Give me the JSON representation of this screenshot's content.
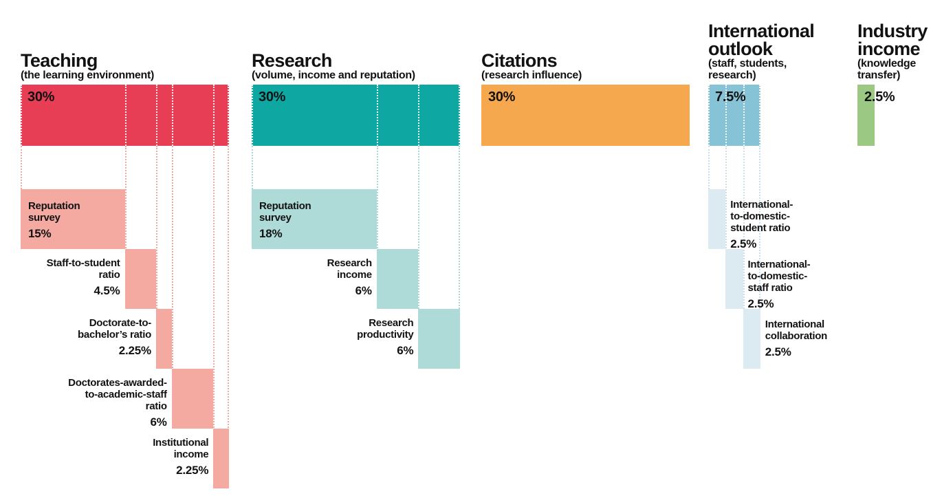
{
  "chart_data": {
    "type": "bar",
    "subtype": "weighted-breakdown-cascade",
    "unit": "percent",
    "total_percent": 100,
    "legend_position": "none",
    "grid": false,
    "sections": [
      {
        "id": "teaching",
        "title_lines": [
          "Teaching"
        ],
        "subtitle_lines": [
          "(the learning environment)"
        ],
        "weight": 30,
        "weight_label": "30%",
        "bar_color": "#e73e56",
        "sub_color": "#f4aaa1",
        "guide_color": "#f2a89f",
        "subs": [
          {
            "label_lines": [
              "Reputation",
              "survey"
            ],
            "weight": 15,
            "weight_label": "15%",
            "label_side": "inside"
          },
          {
            "label_lines": [
              "Staff-to-student",
              "ratio"
            ],
            "weight": 4.5,
            "weight_label": "4.5%",
            "label_side": "before"
          },
          {
            "label_lines": [
              "Doctorate-to-",
              "bachelor’s ratio"
            ],
            "weight": 2.25,
            "weight_label": "2.25%",
            "label_side": "before"
          },
          {
            "label_lines": [
              "Doctorates-awarded-",
              "to-academic-staff",
              "ratio"
            ],
            "weight": 6,
            "weight_label": "6%",
            "label_side": "before"
          },
          {
            "label_lines": [
              "Institutional",
              "income"
            ],
            "weight": 2.25,
            "weight_label": "2.25%",
            "label_side": "before"
          }
        ]
      },
      {
        "id": "research",
        "title_lines": [
          "Research"
        ],
        "subtitle_lines": [
          "(volume, income and reputation)"
        ],
        "weight": 30,
        "weight_label": "30%",
        "bar_color": "#0ea7a2",
        "sub_color": "#aedbd8",
        "guide_color": "#a9d8d5",
        "subs": [
          {
            "label_lines": [
              "Reputation",
              "survey"
            ],
            "weight": 18,
            "weight_label": "18%",
            "label_side": "inside"
          },
          {
            "label_lines": [
              "Research",
              "income"
            ],
            "weight": 6,
            "weight_label": "6%",
            "label_side": "before"
          },
          {
            "label_lines": [
              "Research",
              "productivity"
            ],
            "weight": 6,
            "weight_label": "6%",
            "label_side": "before"
          }
        ]
      },
      {
        "id": "citations",
        "title_lines": [
          "Citations"
        ],
        "subtitle_lines": [
          "(research influence)"
        ],
        "weight": 30,
        "weight_label": "30%",
        "bar_color": "#f6a84f",
        "sub_color": "#f6a84f",
        "guide_color": "#f6a84f",
        "subs": []
      },
      {
        "id": "international-outlook",
        "title_lines": [
          "International",
          "outlook"
        ],
        "subtitle_lines": [
          "(staff, students,",
          "research)"
        ],
        "weight": 7.5,
        "weight_label": "7.5%",
        "bar_color": "#87c3d7",
        "sub_color": "#dcebf2",
        "guide_color": "#c9dfeb",
        "subs": [
          {
            "label_lines": [
              "International-",
              "to-domestic-",
              "student ratio"
            ],
            "weight": 2.5,
            "weight_label": "2.5%",
            "label_side": "after"
          },
          {
            "label_lines": [
              "International-",
              "to-domestic-",
              "staff ratio"
            ],
            "weight": 2.5,
            "weight_label": "2.5%",
            "label_side": "after"
          },
          {
            "label_lines": [
              "International",
              "collaboration"
            ],
            "weight": 2.5,
            "weight_label": "2.5%",
            "label_side": "after"
          }
        ]
      },
      {
        "id": "industry-income",
        "title_lines": [
          "Industry",
          "income"
        ],
        "subtitle_lines": [
          "(knowledge",
          "transfer)"
        ],
        "weight": 2.5,
        "weight_label": "2.5%",
        "bar_color": "#9bc983",
        "sub_color": "#9bc983",
        "guide_color": "#9bc983",
        "subs": []
      }
    ]
  }
}
